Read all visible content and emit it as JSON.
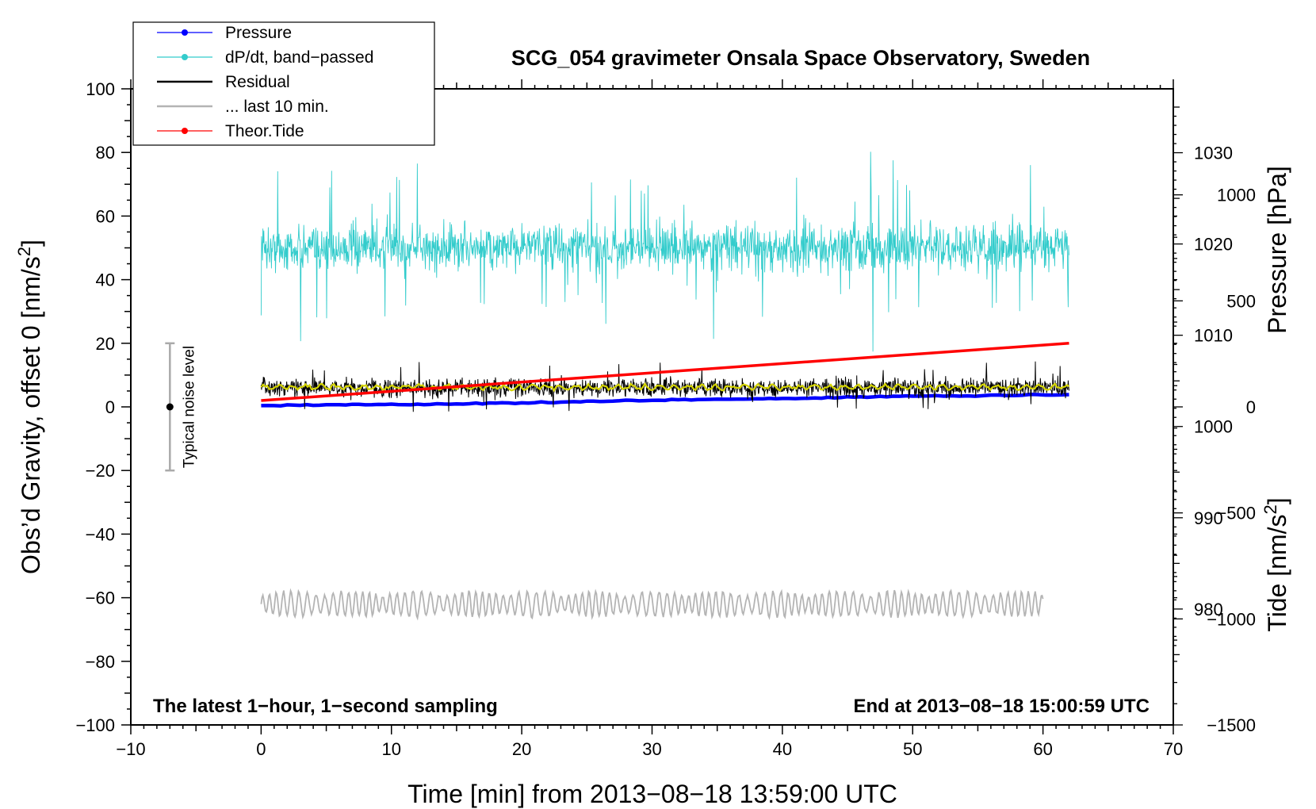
{
  "chart_data": {
    "type": "line",
    "title": "SCG_054 gravimeter Onsala Space Observatory, Sweden",
    "xlabel": "Time [min] from 2013−08−18 13:59:00 UTC",
    "ylabel_left": "Obs’d Gravity, offset 0 [nm/s",
    "ylabel_left_sup": "2",
    "ylabel_left_end": "]",
    "ylabel_right_pressure": "Pressure [hPa]",
    "ylabel_right_tide": "Tide [nm/s",
    "ylabel_right_tide_sup": "2",
    "ylabel_right_tide_end": "]",
    "annotation_left": "The latest 1−hour, 1−second sampling",
    "annotation_right": "End at 2013−08−18 15:00:59 UTC",
    "noise_label": "Typical noise level",
    "xlim": [
      -10,
      70
    ],
    "ylim": [
      -100,
      100
    ],
    "pressure_ylim": [
      967.3,
      1037.0
    ],
    "tide_ylim": [
      -1500,
      1500
    ],
    "x_ticks": [
      "−10",
      "0",
      "10",
      "20",
      "30",
      "40",
      "50",
      "60",
      "70"
    ],
    "x_tick_values": [
      -10,
      0,
      10,
      20,
      30,
      40,
      50,
      60,
      70
    ],
    "y_ticks": [
      "100",
      "80",
      "60",
      "40",
      "20",
      "0",
      "−20",
      "−40",
      "−60",
      "−80",
      "−100"
    ],
    "y_tick_values": [
      100,
      80,
      60,
      40,
      20,
      0,
      -20,
      -40,
      -60,
      -80,
      -100
    ],
    "pressure_ticks": [
      "1030",
      "1020",
      "1010",
      "1000",
      "990",
      "980"
    ],
    "pressure_tick_values": [
      1030,
      1020,
      1010,
      1000,
      990,
      980
    ],
    "tide_ticks": [
      "1000",
      "500",
      "0",
      "−500",
      "−1000",
      "−1500"
    ],
    "tide_tick_values": [
      1000,
      500,
      0,
      -500,
      -1000,
      -1500
    ],
    "grid": false,
    "legend_position": "top-left",
    "legend": [
      {
        "label": "Pressure",
        "color": "#0000ff",
        "marker": true
      },
      {
        "label": "dP/dt, band−passed",
        "color": "#33cccc",
        "marker": true
      },
      {
        "label": "Residual",
        "color": "#000000",
        "marker": false
      },
      {
        "label": "... last 10 min.",
        "color": "#b4b4b4",
        "marker": false
      },
      {
        "label": "Theor.Tide",
        "color": "#ff0000",
        "marker": true
      }
    ],
    "series": [
      {
        "name": "Pressure",
        "axis": "pressure",
        "color": "#0000ff",
        "x": [
          0,
          10,
          20,
          30,
          40,
          50,
          62
        ],
        "y": [
          1002.3,
          1002.4,
          1002.6,
          1002.9,
          1003.1,
          1003.3,
          1003.5
        ]
      },
      {
        "name": "dP/dt, band−passed",
        "axis": "left",
        "color": "#33cccc",
        "x_range": [
          0,
          62
        ],
        "center": 50,
        "amplitude": 9
      },
      {
        "name": "Residual",
        "axis": "left",
        "color": "#000000",
        "x_range": [
          0,
          62
        ],
        "center": 6,
        "amplitude": 4
      },
      {
        "name": "Residual smoothed",
        "axis": "left",
        "color": "#d4d400",
        "x_range": [
          0,
          62
        ],
        "center": 6.2
      },
      {
        "name": "... last 10 min.",
        "axis": "left",
        "color": "#b4b4b4",
        "x_range": [
          0,
          60
        ],
        "center": -62,
        "amplitude": 3.5
      },
      {
        "name": "Theor.Tide",
        "axis": "tide",
        "color": "#ff0000",
        "x": [
          0,
          62
        ],
        "y": [
          30,
          300
        ]
      }
    ],
    "noise_bar": {
      "x": -7,
      "center": 0,
      "low": -20,
      "high": 20
    }
  }
}
